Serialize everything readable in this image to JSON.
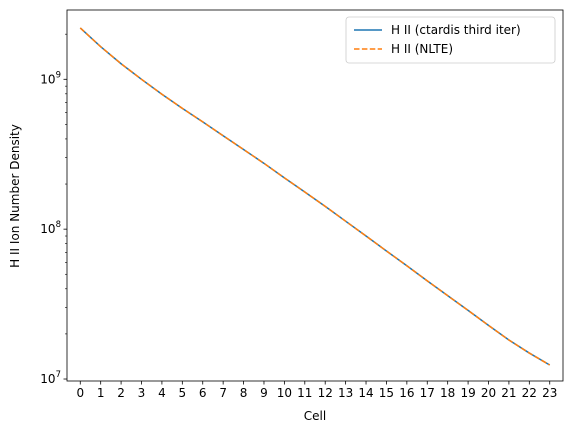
{
  "chart_data": {
    "type": "line",
    "title": "",
    "xlabel": "Cell",
    "ylabel": "H II Ion Number Density",
    "yscale": "log",
    "x": [
      0,
      1,
      2,
      3,
      4,
      5,
      6,
      7,
      8,
      9,
      10,
      11,
      12,
      13,
      14,
      15,
      16,
      17,
      18,
      19,
      20,
      21,
      22,
      23
    ],
    "x_tick_labels": [
      "0",
      "1",
      "2",
      "3",
      "4",
      "5",
      "6",
      "7",
      "8",
      "9",
      "10",
      "11",
      "12",
      "13",
      "14",
      "15",
      "16",
      "17",
      "18",
      "19",
      "20",
      "21",
      "22",
      "23"
    ],
    "xlim": [
      -0.65,
      23.65
    ],
    "ylim": [
      9700000.0,
      2900000000.0
    ],
    "y_major_ticks": [
      10000000.0,
      100000000.0,
      1000000000.0
    ],
    "y_tick_labels": [
      {
        "base": "10",
        "exp": "7"
      },
      {
        "base": "10",
        "exp": "8"
      },
      {
        "base": "10",
        "exp": "9"
      }
    ],
    "grid": false,
    "legend_position": "upper right",
    "series": [
      {
        "name": "H II (ctardis third iter)",
        "color": "#1f77b4",
        "style": "solid",
        "values": [
          2200000000.0,
          1650000000.0,
          1270000000.0,
          1000000000.0,
          795000000.0,
          640000000.0,
          520000000.0,
          420000000.0,
          340000000.0,
          275000000.0,
          220000000.0,
          177000000.0,
          142000000.0,
          113000000.0,
          90000000.0,
          71500000.0,
          57000000.0,
          45200000.0,
          36000000.0,
          28700000.0,
          22800000.0,
          18200000.0,
          14900000.0,
          12400000.0
        ]
      },
      {
        "name": "H II (NLTE)",
        "color": "#ff7f0e",
        "style": "dashed",
        "values": [
          2200000000.0,
          1650000000.0,
          1270000000.0,
          1000000000.0,
          795000000.0,
          640000000.0,
          520000000.0,
          420000000.0,
          340000000.0,
          275000000.0,
          220000000.0,
          177000000.0,
          142000000.0,
          113000000.0,
          90000000.0,
          71500000.0,
          57000000.0,
          45200000.0,
          36000000.0,
          28700000.0,
          22800000.0,
          18200000.0,
          14900000.0,
          12400000.0
        ]
      }
    ]
  }
}
